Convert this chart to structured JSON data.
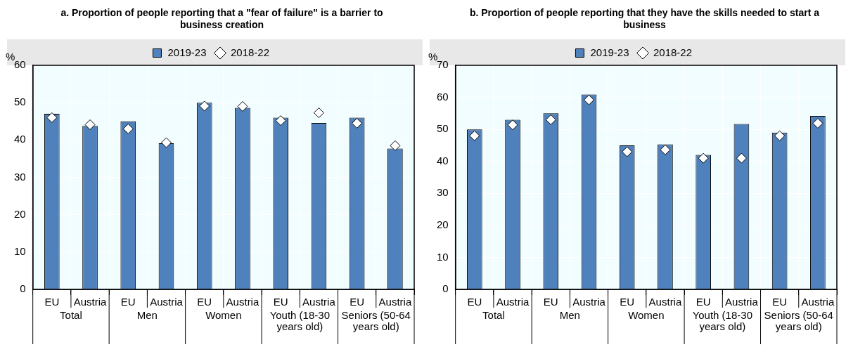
{
  "chart_data": [
    {
      "type": "bar",
      "title": "a. Proportion of people reporting that a \"fear of failure\" is a barrier to business creation",
      "ylabel": "%",
      "categories": [
        "EU",
        "Austria",
        "EU",
        "Austria",
        "EU",
        "Austria",
        "EU",
        "Austria",
        "EU",
        "Austria"
      ],
      "annotations": [
        "Total",
        "Men",
        "Women",
        "Youth (18-30 years old)",
        "Seniors (50-64 years old)"
      ],
      "ylim": [
        0,
        60
      ],
      "yticks": [
        0,
        10,
        20,
        30,
        40,
        50,
        60
      ],
      "grid": true,
      "legend": "top",
      "series": [
        {
          "name": "2019-23",
          "color": "#4f81bd",
          "values": [
            47,
            43.8,
            45,
            39.1,
            50,
            48.6,
            46,
            44.6,
            46,
            37.7
          ]
        },
        {
          "name": "2018-22",
          "type": "scatter",
          "marker": "diamond",
          "color": "#ffffff",
          "values": [
            46,
            44.1,
            43,
            39.3,
            49.1,
            49,
            45.2,
            47.3,
            44.5,
            38.5
          ]
        }
      ]
    },
    {
      "type": "bar",
      "title": "b. Proportion of people reporting that they have the skills needed to start a business",
      "ylabel": "%",
      "categories": [
        "EU",
        "Austria",
        "EU",
        "Austria",
        "EU",
        "Austria",
        "EU",
        "Austria",
        "EU",
        "Austria"
      ],
      "annotations": [
        "Total",
        "Men",
        "Women",
        "Youth (18-30 years old)",
        "Seniors (50-64 years old)"
      ],
      "ylim": [
        0,
        70
      ],
      "yticks": [
        0,
        10,
        20,
        30,
        40,
        50,
        60,
        70
      ],
      "grid": true,
      "legend": "top",
      "series": [
        {
          "name": "2019-23",
          "color": "#4f81bd",
          "values": [
            50,
            53,
            55,
            60.9,
            45,
            45.3,
            42,
            51.7,
            49,
            54.2
          ]
        },
        {
          "name": "2018-22",
          "type": "scatter",
          "marker": "diamond",
          "color": "#ffffff",
          "values": [
            48,
            51.4,
            53,
            59.2,
            43,
            43.6,
            41,
            41,
            48,
            51.9
          ]
        }
      ]
    }
  ]
}
